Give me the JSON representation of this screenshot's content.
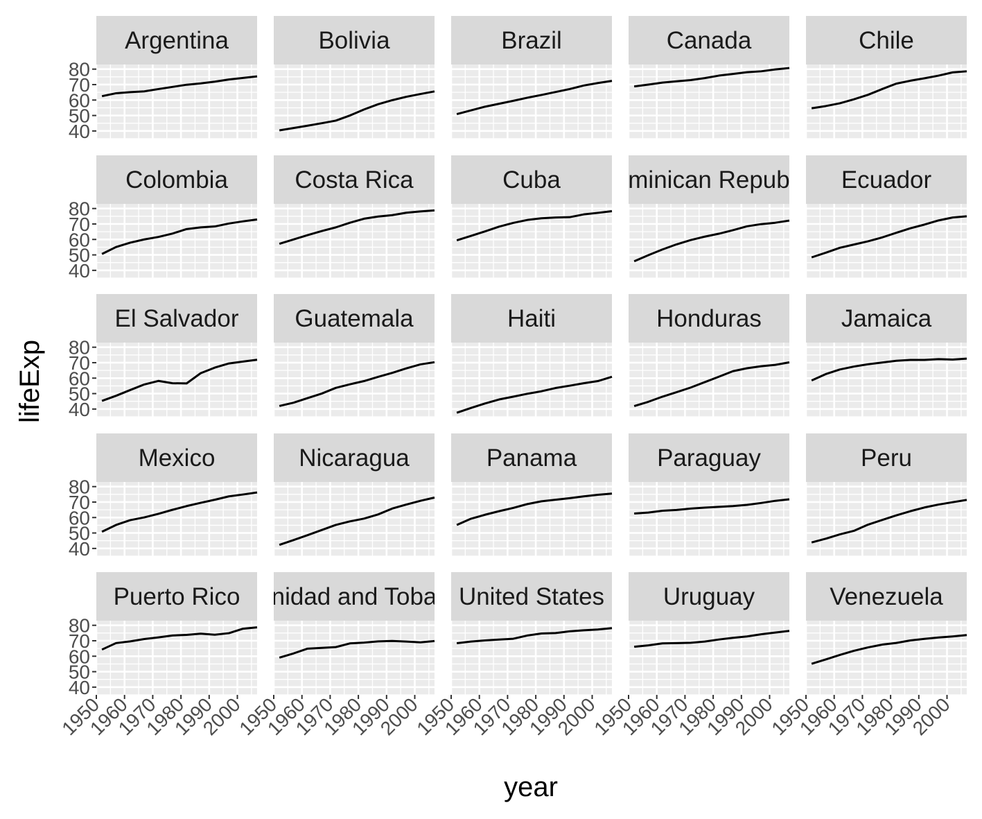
{
  "chart_data": {
    "type": "line",
    "facet_layout": "5x5 grid",
    "xlabel": "year",
    "ylabel": "lifeExp",
    "xlim": [
      1950,
      2007
    ],
    "ylim": [
      35,
      83
    ],
    "x_ticks": [
      1950,
      1960,
      1970,
      1980,
      1990,
      2000
    ],
    "x_tick_labels": [
      "1950",
      "1960",
      "1970",
      "1980",
      "1990",
      "2000"
    ],
    "y_ticks": [
      40,
      50,
      60,
      70,
      80
    ],
    "y_tick_labels": [
      "40",
      "50",
      "60",
      "70",
      "80"
    ],
    "grid": true,
    "x": [
      1952,
      1957,
      1962,
      1967,
      1972,
      1977,
      1982,
      1987,
      1992,
      1997,
      2002,
      2007
    ],
    "series": [
      {
        "name": "Argentina",
        "strip_label": "Argentina",
        "values": [
          62.5,
          64.4,
          65.1,
          65.6,
          67.1,
          68.5,
          69.9,
          70.8,
          71.9,
          73.3,
          74.3,
          75.3
        ]
      },
      {
        "name": "Bolivia",
        "strip_label": "Bolivia",
        "values": [
          40.4,
          41.9,
          43.4,
          45.0,
          46.7,
          50.0,
          53.9,
          57.3,
          59.9,
          62.1,
          63.9,
          65.6
        ]
      },
      {
        "name": "Brazil",
        "strip_label": "Brazil",
        "values": [
          50.9,
          53.3,
          55.7,
          57.6,
          59.5,
          61.5,
          63.3,
          65.2,
          67.1,
          69.4,
          71.0,
          72.4
        ]
      },
      {
        "name": "Canada",
        "strip_label": "Canada",
        "values": [
          68.8,
          70.0,
          71.3,
          72.1,
          72.9,
          74.2,
          75.8,
          76.9,
          78.0,
          78.6,
          79.8,
          80.7
        ]
      },
      {
        "name": "Chile",
        "strip_label": "Chile",
        "values": [
          54.7,
          56.1,
          57.9,
          60.5,
          63.4,
          67.1,
          70.6,
          72.5,
          74.1,
          75.8,
          77.9,
          78.6
        ]
      },
      {
        "name": "Colombia",
        "strip_label": "Colombia",
        "values": [
          50.6,
          55.1,
          57.9,
          60.0,
          61.6,
          63.8,
          66.7,
          67.8,
          68.4,
          70.3,
          71.7,
          72.9
        ]
      },
      {
        "name": "Costa Rica",
        "strip_label": "Costa Rica",
        "values": [
          57.2,
          60.0,
          62.8,
          65.4,
          67.8,
          70.8,
          73.4,
          74.8,
          75.7,
          77.3,
          78.1,
          78.8
        ]
      },
      {
        "name": "Cuba",
        "strip_label": "Cuba",
        "values": [
          59.4,
          62.3,
          65.2,
          68.3,
          70.7,
          72.6,
          73.7,
          74.2,
          74.4,
          76.2,
          77.2,
          78.3
        ]
      },
      {
        "name": "Dominican Republic",
        "strip_label": "minican Repub",
        "values": [
          45.9,
          49.8,
          53.5,
          56.8,
          59.6,
          61.8,
          63.7,
          66.0,
          68.5,
          69.9,
          70.8,
          72.2
        ]
      },
      {
        "name": "Ecuador",
        "strip_label": "Ecuador",
        "values": [
          48.4,
          51.4,
          54.6,
          56.7,
          58.8,
          61.3,
          64.3,
          67.2,
          69.6,
          72.3,
          74.2,
          75.0
        ]
      },
      {
        "name": "El Salvador",
        "strip_label": "El Salvador",
        "values": [
          45.3,
          48.6,
          52.3,
          55.9,
          58.2,
          56.7,
          56.6,
          63.2,
          66.8,
          69.5,
          70.7,
          71.9
        ]
      },
      {
        "name": "Guatemala",
        "strip_label": "Guatemala",
        "values": [
          42.0,
          44.1,
          47.1,
          50.0,
          53.7,
          56.0,
          58.1,
          60.8,
          63.4,
          66.3,
          68.9,
          70.3
        ]
      },
      {
        "name": "Haiti",
        "strip_label": "Haiti",
        "values": [
          37.6,
          40.7,
          43.6,
          46.2,
          48.0,
          49.9,
          51.5,
          53.6,
          55.1,
          56.7,
          58.1,
          60.9
        ]
      },
      {
        "name": "Honduras",
        "strip_label": "Honduras",
        "values": [
          41.9,
          44.7,
          48.0,
          50.9,
          53.9,
          57.4,
          60.9,
          64.5,
          66.4,
          67.7,
          68.6,
          70.2
        ]
      },
      {
        "name": "Jamaica",
        "strip_label": "Jamaica",
        "values": [
          58.5,
          62.6,
          65.6,
          67.5,
          69.0,
          70.1,
          71.2,
          71.8,
          71.8,
          72.3,
          72.0,
          72.6
        ]
      },
      {
        "name": "Mexico",
        "strip_label": "Mexico",
        "values": [
          50.8,
          55.2,
          58.3,
          60.1,
          62.4,
          65.0,
          67.4,
          69.5,
          71.5,
          73.7,
          74.9,
          76.2
        ]
      },
      {
        "name": "Nicaragua",
        "strip_label": "Nicaragua",
        "values": [
          42.3,
          45.4,
          48.6,
          51.9,
          55.2,
          57.5,
          59.3,
          62.0,
          65.8,
          68.4,
          70.8,
          72.9
        ]
      },
      {
        "name": "Panama",
        "strip_label": "Panama",
        "values": [
          55.2,
          59.2,
          61.8,
          64.1,
          66.2,
          68.7,
          70.5,
          71.5,
          72.5,
          73.7,
          74.7,
          75.5
        ]
      },
      {
        "name": "Paraguay",
        "strip_label": "Paraguay",
        "values": [
          62.6,
          63.2,
          64.4,
          64.9,
          65.8,
          66.4,
          66.9,
          67.4,
          68.2,
          69.4,
          70.8,
          71.8
        ]
      },
      {
        "name": "Peru",
        "strip_label": "Peru",
        "values": [
          43.9,
          46.3,
          49.1,
          51.4,
          55.4,
          58.4,
          61.4,
          64.1,
          66.5,
          68.4,
          69.9,
          71.4
        ]
      },
      {
        "name": "Puerto Rico",
        "strip_label": "Puerto Rico",
        "values": [
          64.3,
          68.5,
          69.6,
          71.1,
          72.2,
          73.4,
          73.8,
          74.6,
          73.9,
          74.9,
          77.8,
          78.7
        ]
      },
      {
        "name": "Trinidad and Tobago",
        "strip_label": "nidad and Toba",
        "values": [
          59.1,
          61.8,
          64.9,
          65.4,
          65.9,
          68.3,
          68.8,
          69.6,
          69.9,
          69.5,
          68.98,
          69.8
        ]
      },
      {
        "name": "United States",
        "strip_label": "United States",
        "values": [
          68.4,
          69.5,
          70.2,
          70.8,
          71.3,
          73.4,
          74.7,
          75.0,
          76.1,
          76.8,
          77.3,
          78.2
        ]
      },
      {
        "name": "Uruguay",
        "strip_label": "Uruguay",
        "values": [
          66.1,
          67.0,
          68.3,
          68.5,
          68.7,
          69.5,
          70.8,
          71.9,
          72.8,
          74.2,
          75.3,
          76.4
        ]
      },
      {
        "name": "Venezuela",
        "strip_label": "Venezuela",
        "values": [
          55.1,
          57.9,
          60.8,
          63.5,
          65.7,
          67.5,
          68.6,
          70.2,
          71.2,
          72.1,
          72.8,
          73.7
        ]
      }
    ],
    "colors": {
      "panel_bg": "#ebebeb",
      "grid_major": "#ffffff",
      "grid_minor": "#f4f4f4",
      "strip_bg": "#d9d9d9",
      "line": "#000000",
      "tick": "#333333"
    }
  }
}
